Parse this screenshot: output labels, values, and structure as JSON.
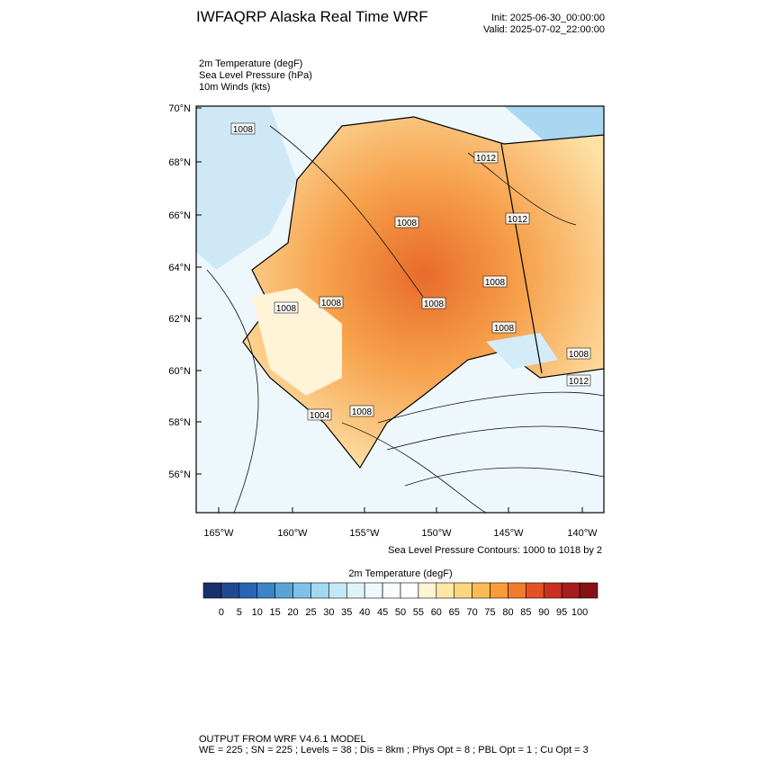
{
  "header": {
    "title": "IWFAQRP Alaska Real Time WRF",
    "init": "Init: 2025-06-30_00:00:00",
    "valid": "Valid: 2025-07-02_22:00:00"
  },
  "fields": [
    "2m Temperature   (degF)",
    "Sea Level Pressure   (hPa)",
    "10m Winds   (kts)"
  ],
  "map": {
    "lat_labels": [
      "70°N",
      "68°N",
      "66°N",
      "64°N",
      "62°N",
      "60°N",
      "58°N",
      "56°N"
    ],
    "lon_labels": [
      "165°W",
      "160°W",
      "155°W",
      "150°W",
      "145°W",
      "140°W"
    ],
    "contour_labels": [
      "1008",
      "1012",
      "1008",
      "1012",
      "1008",
      "1008",
      "1008",
      "1008",
      "1008",
      "1008",
      "1012",
      "1004",
      "1008"
    ],
    "contour_note": "Sea Level Pressure Contours: 1000 to 1018 by 2"
  },
  "colorbar": {
    "title": "2m Temperature  (degF)",
    "levels": [
      0,
      5,
      10,
      15,
      20,
      25,
      30,
      35,
      40,
      45,
      50,
      55,
      60,
      65,
      70,
      75,
      80,
      85,
      90,
      95,
      100
    ],
    "colors": [
      "#1a2f6b",
      "#1f4a93",
      "#2a64b4",
      "#3c84c8",
      "#5aa3d9",
      "#7fc0e8",
      "#a3d8f3",
      "#c4e8f7",
      "#dff3fa",
      "#eef9fc",
      "#f8fcfd",
      "#ffffff",
      "#fff5d6",
      "#ffe7a8",
      "#fdd67e",
      "#fcbb55",
      "#f99c38",
      "#f27a2b",
      "#e35225",
      "#c9301f",
      "#a81c1d",
      "#851316"
    ]
  },
  "footer": {
    "line1": "OUTPUT FROM WRF V4.6.1 MODEL",
    "line2": "WE = 225 ; SN = 225 ; Levels = 38 ; Dis = 8km ; Phys Opt = 8 ; PBL Opt = 1 ; Cu Opt = 3"
  }
}
